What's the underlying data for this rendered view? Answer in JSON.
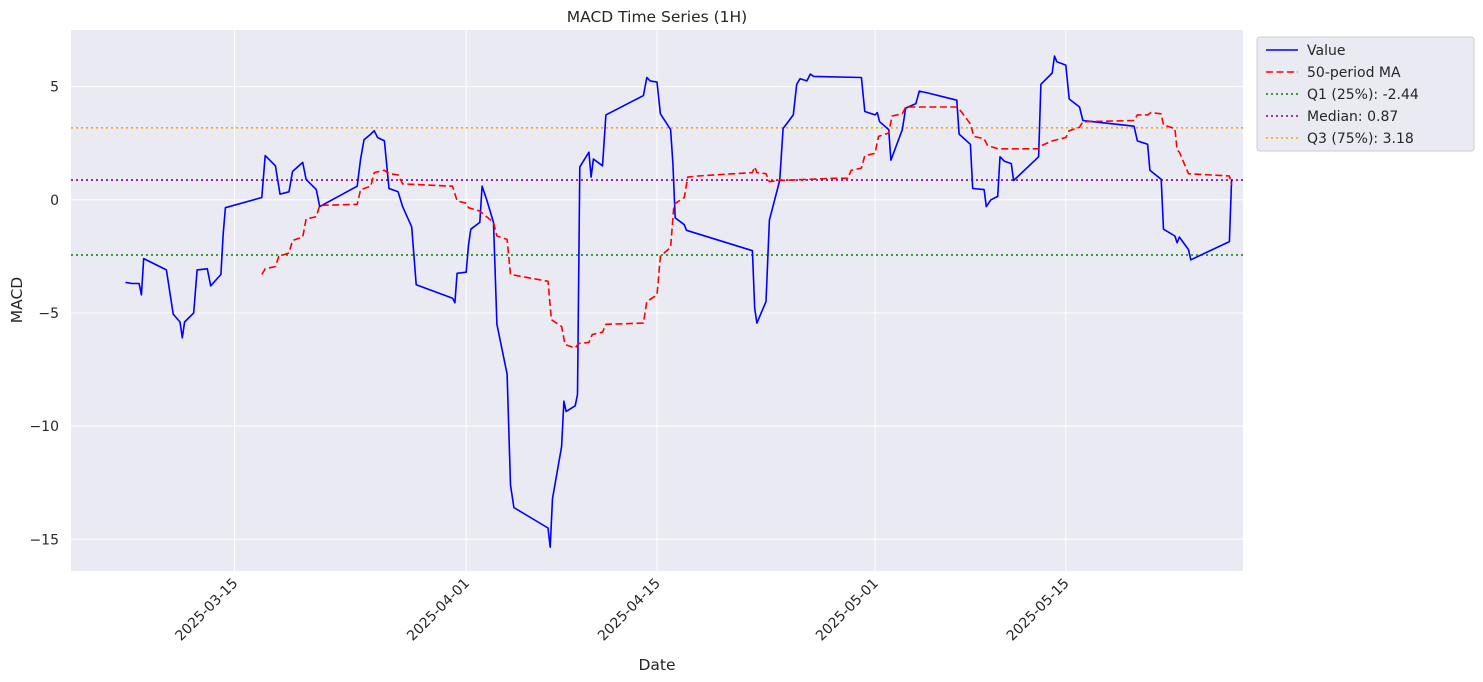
{
  "chart_data": {
    "type": "line",
    "title": "MACD Time Series (1H)",
    "xlabel": "Date",
    "ylabel": "MACD",
    "xlim": [
      "2025-03-03",
      "2025-05-28"
    ],
    "ylim": [
      -16.4,
      7.5
    ],
    "grid": true,
    "legend_position": "outside-top-right",
    "x_ticks": [
      "2025-03-15",
      "2025-04-01",
      "2025-04-15",
      "2025-05-01",
      "2025-05-15"
    ],
    "y_ticks": [
      5,
      0,
      -5,
      -10,
      -15
    ],
    "y_tick_labels": [
      "5",
      "0",
      "−10",
      "−15"
    ],
    "y_tick_labels_full": [
      "5",
      "0",
      "−5",
      "−10",
      "−15"
    ],
    "series": [
      {
        "name": "Value",
        "style": "solid",
        "color": "#0000ff",
        "points": [
          [
            "2025-03-07",
            -3.65
          ],
          [
            "2025-03-07T12",
            -3.7
          ],
          [
            "2025-03-08",
            -3.7
          ],
          [
            "2025-03-08T04",
            -4.2
          ],
          [
            "2025-03-08T08",
            -2.6
          ],
          [
            "2025-03-10",
            -3.1
          ],
          [
            "2025-03-10T12",
            -5.05
          ],
          [
            "2025-03-11",
            -5.4
          ],
          [
            "2025-03-11T04",
            -6.1
          ],
          [
            "2025-03-11T08",
            -5.4
          ],
          [
            "2025-03-12",
            -5.0
          ],
          [
            "2025-03-12T06",
            -3.1
          ],
          [
            "2025-03-13",
            -3.05
          ],
          [
            "2025-03-13T06",
            -3.8
          ],
          [
            "2025-03-14",
            -3.3
          ],
          [
            "2025-03-14T04",
            -1.5
          ],
          [
            "2025-03-14T08",
            -0.35
          ],
          [
            "2025-03-17",
            0.1
          ],
          [
            "2025-03-17T06",
            1.95
          ],
          [
            "2025-03-18",
            1.5
          ],
          [
            "2025-03-18T08",
            0.25
          ],
          [
            "2025-03-19",
            0.35
          ],
          [
            "2025-03-19T06",
            1.25
          ],
          [
            "2025-03-20",
            1.65
          ],
          [
            "2025-03-20T06",
            0.9
          ],
          [
            "2025-03-21",
            0.45
          ],
          [
            "2025-03-21T06",
            -0.3
          ],
          [
            "2025-03-24",
            0.6
          ],
          [
            "2025-03-24T06",
            1.8
          ],
          [
            "2025-03-24T12",
            2.65
          ],
          [
            "2025-03-25",
            2.9
          ],
          [
            "2025-03-25T06",
            3.05
          ],
          [
            "2025-03-25T12",
            2.75
          ],
          [
            "2025-03-26",
            2.6
          ],
          [
            "2025-03-26T08",
            0.5
          ],
          [
            "2025-03-27",
            0.35
          ],
          [
            "2025-03-27T08",
            -0.3
          ],
          [
            "2025-03-28",
            -1.2
          ],
          [
            "2025-03-28T08",
            -3.75
          ],
          [
            "2025-03-31",
            -4.35
          ],
          [
            "2025-03-31T04",
            -4.55
          ],
          [
            "2025-03-31T08",
            -3.25
          ],
          [
            "2025-04-01",
            -3.2
          ],
          [
            "2025-04-01T04",
            -2.0
          ],
          [
            "2025-04-01T08",
            -1.3
          ],
          [
            "2025-04-02",
            -1.0
          ],
          [
            "2025-04-02T04",
            0.6
          ],
          [
            "2025-04-02T12",
            0.0
          ],
          [
            "2025-04-03",
            -1.0
          ],
          [
            "2025-04-03T06",
            -5.5
          ],
          [
            "2025-04-04",
            -7.7
          ],
          [
            "2025-04-04T06",
            -12.6
          ],
          [
            "2025-04-04T12",
            -13.6
          ],
          [
            "2025-04-07",
            -14.5
          ],
          [
            "2025-04-07T04",
            -15.35
          ],
          [
            "2025-04-07T08",
            -13.2
          ],
          [
            "2025-04-08",
            -10.9
          ],
          [
            "2025-04-08T04",
            -8.9
          ],
          [
            "2025-04-08T08",
            -9.35
          ],
          [
            "2025-04-09",
            -9.1
          ],
          [
            "2025-04-09T04",
            -8.6
          ],
          [
            "2025-04-09T08",
            1.45
          ],
          [
            "2025-04-10",
            2.1
          ],
          [
            "2025-04-10T04",
            1.0
          ],
          [
            "2025-04-10T08",
            1.8
          ],
          [
            "2025-04-11",
            1.5
          ],
          [
            "2025-04-11T06",
            3.75
          ],
          [
            "2025-04-14",
            4.6
          ],
          [
            "2025-04-14T06",
            5.4
          ],
          [
            "2025-04-14T12",
            5.25
          ],
          [
            "2025-04-15",
            5.2
          ],
          [
            "2025-04-15T06",
            3.8
          ],
          [
            "2025-04-16",
            3.1
          ],
          [
            "2025-04-16T04",
            1.6
          ],
          [
            "2025-04-16T08",
            -0.8
          ],
          [
            "2025-04-17",
            -1.1
          ],
          [
            "2025-04-17T04",
            -1.35
          ],
          [
            "2025-04-22",
            -2.25
          ],
          [
            "2025-04-22T04",
            -4.8
          ],
          [
            "2025-04-22T08",
            -5.45
          ],
          [
            "2025-04-23",
            -4.5
          ],
          [
            "2025-04-23T06",
            -0.9
          ],
          [
            "2025-04-24",
            0.85
          ],
          [
            "2025-04-24T06",
            3.15
          ],
          [
            "2025-04-25",
            3.75
          ],
          [
            "2025-04-25T06",
            5.1
          ],
          [
            "2025-04-25T12",
            5.35
          ],
          [
            "2025-04-26",
            5.25
          ],
          [
            "2025-04-26T06",
            5.55
          ],
          [
            "2025-04-26T12",
            5.45
          ],
          [
            "2025-04-30",
            5.4
          ],
          [
            "2025-04-30T06",
            3.9
          ],
          [
            "2025-05-01",
            3.75
          ],
          [
            "2025-05-01T04",
            3.85
          ],
          [
            "2025-05-01T08",
            3.45
          ],
          [
            "2025-05-02",
            3.1
          ],
          [
            "2025-05-02T04",
            1.75
          ],
          [
            "2025-05-03",
            3.1
          ],
          [
            "2025-05-03T06",
            4.05
          ],
          [
            "2025-05-04",
            4.25
          ],
          [
            "2025-05-04T06",
            4.8
          ],
          [
            "2025-05-05",
            4.7
          ],
          [
            "2025-05-06",
            4.55
          ],
          [
            "2025-05-07",
            4.4
          ],
          [
            "2025-05-07T04",
            2.9
          ],
          [
            "2025-05-08",
            2.45
          ],
          [
            "2025-05-08T04",
            0.5
          ],
          [
            "2025-05-09",
            0.45
          ],
          [
            "2025-05-09T04",
            -0.3
          ],
          [
            "2025-05-09T12",
            0.0
          ],
          [
            "2025-05-10",
            0.15
          ],
          [
            "2025-05-10T04",
            1.9
          ],
          [
            "2025-05-10T12",
            1.7
          ],
          [
            "2025-05-11",
            1.6
          ],
          [
            "2025-05-11T04",
            0.85
          ],
          [
            "2025-05-13",
            1.9
          ],
          [
            "2025-05-13T04",
            5.1
          ],
          [
            "2025-05-14",
            5.6
          ],
          [
            "2025-05-14T04",
            6.35
          ],
          [
            "2025-05-14T08",
            6.1
          ],
          [
            "2025-05-15",
            5.95
          ],
          [
            "2025-05-15T06",
            4.45
          ],
          [
            "2025-05-16",
            4.1
          ],
          [
            "2025-05-16T06",
            3.5
          ],
          [
            "2025-05-17",
            3.45
          ],
          [
            "2025-05-20",
            3.25
          ],
          [
            "2025-05-20T06",
            2.6
          ],
          [
            "2025-05-21",
            2.45
          ],
          [
            "2025-05-21T04",
            1.3
          ],
          [
            "2025-05-22",
            0.9
          ],
          [
            "2025-05-22T04",
            -1.3
          ],
          [
            "2025-05-23",
            -1.6
          ],
          [
            "2025-05-23T04",
            -1.9
          ],
          [
            "2025-05-23T08",
            -1.65
          ],
          [
            "2025-05-24",
            -2.2
          ],
          [
            "2025-05-24T04",
            -2.65
          ],
          [
            "2025-05-27",
            -1.85
          ],
          [
            "2025-05-27T04",
            0.9
          ]
        ]
      },
      {
        "name": "50-period MA",
        "style": "dashed",
        "color": "#ff0000",
        "points": [
          [
            "2025-03-17",
            -3.3
          ],
          [
            "2025-03-17T06",
            -3.05
          ],
          [
            "2025-03-18",
            -2.95
          ],
          [
            "2025-03-18T06",
            -2.5
          ],
          [
            "2025-03-19",
            -2.35
          ],
          [
            "2025-03-19T06",
            -1.8
          ],
          [
            "2025-03-20",
            -1.65
          ],
          [
            "2025-03-20T06",
            -0.85
          ],
          [
            "2025-03-21",
            -0.75
          ],
          [
            "2025-03-21T06",
            -0.25
          ],
          [
            "2025-03-24",
            -0.2
          ],
          [
            "2025-03-24T06",
            0.45
          ],
          [
            "2025-03-25",
            0.6
          ],
          [
            "2025-03-25T06",
            1.2
          ],
          [
            "2025-03-26",
            1.3
          ],
          [
            "2025-03-26T08",
            1.15
          ],
          [
            "2025-03-27",
            1.1
          ],
          [
            "2025-03-27T08",
            0.7
          ],
          [
            "2025-03-31",
            0.6
          ],
          [
            "2025-03-31T08",
            -0.05
          ],
          [
            "2025-04-01",
            -0.15
          ],
          [
            "2025-04-01T04",
            -0.35
          ],
          [
            "2025-04-02",
            -0.5
          ],
          [
            "2025-04-03",
            -1.0
          ],
          [
            "2025-04-03T06",
            -1.6
          ],
          [
            "2025-04-04",
            -1.75
          ],
          [
            "2025-04-04T06",
            -3.3
          ],
          [
            "2025-04-07",
            -3.6
          ],
          [
            "2025-04-07T06",
            -5.3
          ],
          [
            "2025-04-08",
            -5.6
          ],
          [
            "2025-04-08T06",
            -6.4
          ],
          [
            "2025-04-09",
            -6.55
          ],
          [
            "2025-04-09T06",
            -6.35
          ],
          [
            "2025-04-10",
            -6.3
          ],
          [
            "2025-04-10T06",
            -5.95
          ],
          [
            "2025-04-11",
            -5.85
          ],
          [
            "2025-04-11T06",
            -5.5
          ],
          [
            "2025-04-14",
            -5.45
          ],
          [
            "2025-04-14T06",
            -4.5
          ],
          [
            "2025-04-15",
            -4.2
          ],
          [
            "2025-04-15T06",
            -2.5
          ],
          [
            "2025-04-16",
            -2.1
          ],
          [
            "2025-04-16T06",
            -0.2
          ],
          [
            "2025-04-17",
            0.1
          ],
          [
            "2025-04-17T06",
            1.0
          ],
          [
            "2025-04-18",
            1.05
          ],
          [
            "2025-04-22",
            1.2
          ],
          [
            "2025-04-22T04",
            1.45
          ],
          [
            "2025-04-22T08",
            1.2
          ],
          [
            "2025-04-23",
            1.15
          ],
          [
            "2025-04-23T06",
            0.8
          ],
          [
            "2025-04-24",
            0.85
          ],
          [
            "2025-04-28",
            0.95
          ],
          [
            "2025-04-29",
            0.95
          ],
          [
            "2025-04-29T06",
            1.3
          ],
          [
            "2025-04-30",
            1.4
          ],
          [
            "2025-04-30T06",
            1.95
          ],
          [
            "2025-05-01",
            2.05
          ],
          [
            "2025-05-01T06",
            2.8
          ],
          [
            "2025-05-02",
            2.95
          ],
          [
            "2025-05-02T06",
            3.7
          ],
          [
            "2025-05-03",
            3.8
          ],
          [
            "2025-05-03T06",
            4.1
          ],
          [
            "2025-05-07",
            4.1
          ],
          [
            "2025-05-07T06",
            3.95
          ],
          [
            "2025-05-08",
            3.35
          ],
          [
            "2025-05-08T06",
            2.8
          ],
          [
            "2025-05-09",
            2.7
          ],
          [
            "2025-05-09T06",
            2.4
          ],
          [
            "2025-05-10",
            2.25
          ],
          [
            "2025-05-13",
            2.25
          ],
          [
            "2025-05-13T06",
            2.4
          ],
          [
            "2025-05-14",
            2.6
          ],
          [
            "2025-05-15",
            2.75
          ],
          [
            "2025-05-15T06",
            3.05
          ],
          [
            "2025-05-16",
            3.2
          ],
          [
            "2025-05-16T06",
            3.45
          ],
          [
            "2025-05-20",
            3.5
          ],
          [
            "2025-05-20T06",
            3.75
          ],
          [
            "2025-05-21",
            3.75
          ],
          [
            "2025-05-21T06",
            3.85
          ],
          [
            "2025-05-22",
            3.8
          ],
          [
            "2025-05-22T04",
            3.3
          ],
          [
            "2025-05-23",
            3.15
          ],
          [
            "2025-05-23T04",
            2.2
          ],
          [
            "2025-05-23T08",
            2.1
          ],
          [
            "2025-05-24",
            1.15
          ],
          [
            "2025-05-27",
            1.05
          ],
          [
            "2025-05-27T04",
            0.65
          ]
        ]
      }
    ],
    "reference_lines": [
      {
        "name": "Q1 (25%): -2.44",
        "value": -2.44,
        "style": "dotted",
        "color": "#008000"
      },
      {
        "name": "Median: 0.87",
        "value": 0.87,
        "style": "dotted",
        "color": "#800080"
      },
      {
        "name": "Q3 (75%): 3.18",
        "value": 3.18,
        "style": "dotted",
        "color": "#ffa500"
      }
    ]
  },
  "colors": {
    "plot_background": "#eaeaf2",
    "grid": "#ffffff",
    "text": "#262626",
    "legend_border": "#cccccc",
    "legend_background": "#eaeaf2"
  }
}
